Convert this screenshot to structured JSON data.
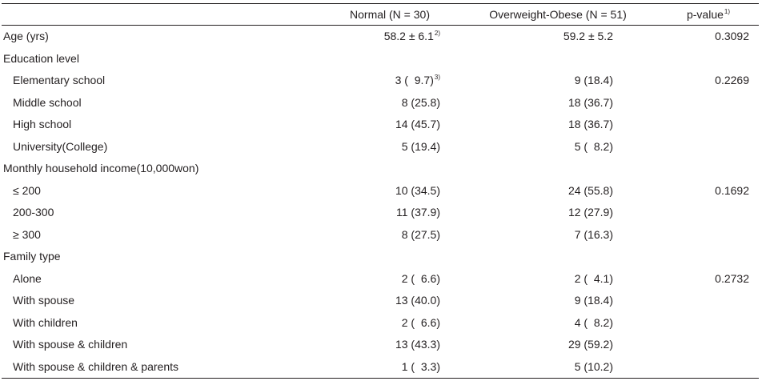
{
  "header": {
    "normal": "Normal (N = 30)",
    "overweight": "Overweight-Obese (N = 51)",
    "p_value": "p-value",
    "p_value_note": "1)"
  },
  "rows": [
    {
      "label": "Age (yrs)",
      "normal": "58.2 ± 6.1",
      "normal_note": "2)",
      "ow": "59.2 ± 5.2",
      "p": "0.3092"
    },
    {
      "label": "Education level"
    },
    {
      "label": "Elementary school",
      "normal": "3 (  9.7)",
      "normal_note": "3)",
      "ow": "9 (18.4)",
      "p": "0.2269"
    },
    {
      "label": "Middle school",
      "normal": "8 (25.8)",
      "ow": "18 (36.7)"
    },
    {
      "label": "High school",
      "normal": "14 (45.7)",
      "ow": "18 (36.7)"
    },
    {
      "label": "University(College)",
      "normal": "5 (19.4)",
      "ow": "5 (  8.2)"
    },
    {
      "label": "Monthly household income(10,000won)"
    },
    {
      "label": "≤ 200",
      "normal": "10 (34.5)",
      "ow": "24 (55.8)",
      "p": "0.1692"
    },
    {
      "label": "200-300",
      "normal": "11 (37.9)",
      "ow": "12 (27.9)"
    },
    {
      "label": "≥ 300",
      "normal": "8 (27.5)",
      "ow": "7 (16.3)"
    },
    {
      "label": "Family type"
    },
    {
      "label": "Alone",
      "normal": "2 (  6.6)",
      "ow": "2 (  4.1)",
      "p": "0.2732"
    },
    {
      "label": "With spouse",
      "normal": "13 (40.0)",
      "ow": "9 (18.4)"
    },
    {
      "label": "With children",
      "normal": "2 (  6.6)",
      "ow": "4 (  8.2)"
    },
    {
      "label": "With spouse & children",
      "normal": "13 (43.3)",
      "ow": "29 (59.2)"
    },
    {
      "label": "With spouse & children & parents",
      "normal": "1 (  3.3)",
      "ow": "5 (10.2)"
    }
  ]
}
